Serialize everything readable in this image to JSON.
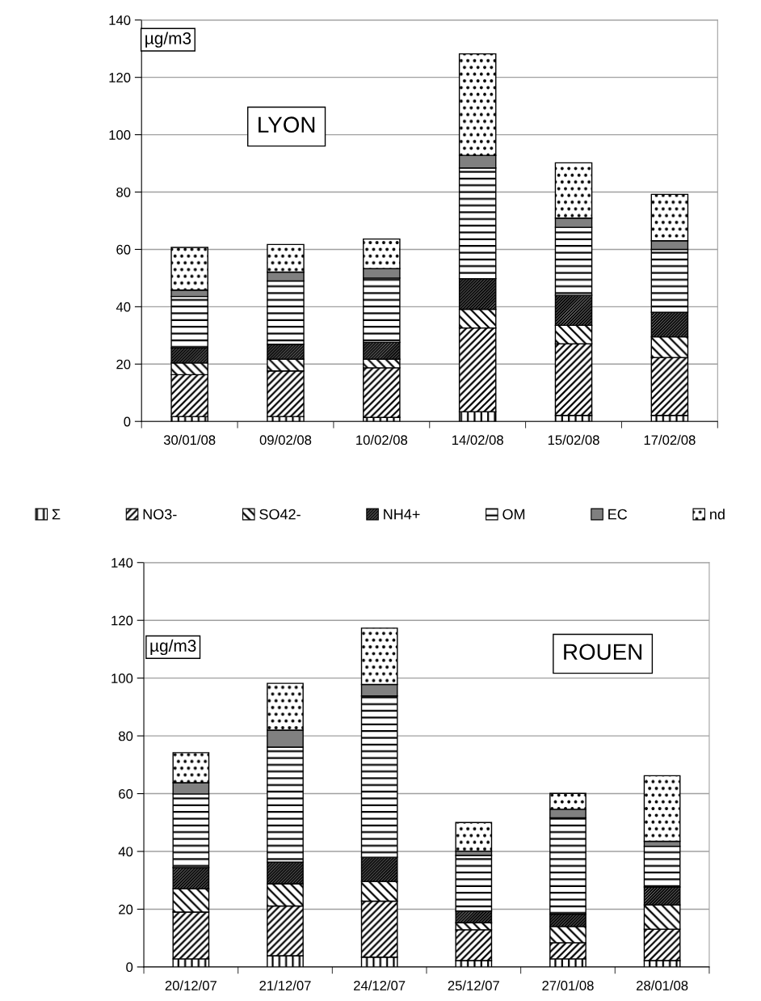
{
  "chart_data": [
    {
      "type": "bar",
      "stacked": true,
      "categories": [
        "30/01/08",
        "09/02/08",
        "10/02/08",
        "14/02/08",
        "15/02/08",
        "17/02/08"
      ],
      "ylim": [
        0,
        140
      ],
      "yticks": [
        0,
        20,
        40,
        60,
        80,
        100,
        120,
        140
      ],
      "grid": "y",
      "legend": "bottom",
      "annotations": [
        "µg/m3",
        "LYON"
      ],
      "series": [
        {
          "name": "Σ",
          "color": "#000000",
          "values": [
            1.7,
            1.7,
            1.4,
            3.4,
            2.1,
            2.1
          ]
        },
        {
          "name": "NO3-",
          "color": "#000000",
          "values": [
            14.6,
            15.9,
            17.3,
            29.2,
            25,
            20.2
          ]
        },
        {
          "name": "SO42-",
          "color": "#000000",
          "values": [
            4.1,
            4.1,
            3,
            6.5,
            6.4,
            7.2
          ]
        },
        {
          "name": "NH4+",
          "color": "#000000",
          "values": [
            5.2,
            5.2,
            5.9,
            10.7,
            10.5,
            8.6
          ]
        },
        {
          "name": "OM",
          "color": "#000000",
          "values": [
            18,
            22.1,
            22.4,
            38.6,
            23.7,
            21.9
          ]
        },
        {
          "name": "EC",
          "color": "#808080",
          "values": [
            2.2,
            3.1,
            3.3,
            4.4,
            3.2,
            3
          ]
        },
        {
          "name": "nd",
          "color": "#000000",
          "values": [
            14.9,
            9.6,
            10.3,
            35.4,
            19.3,
            16.2
          ]
        }
      ]
    },
    {
      "type": "bar",
      "stacked": true,
      "categories": [
        "20/12/07",
        "21/12/07",
        "24/12/07",
        "25/12/07",
        "27/01/08",
        "28/01/08"
      ],
      "ylim": [
        0,
        140
      ],
      "yticks": [
        0,
        20,
        40,
        60,
        80,
        100,
        120,
        140
      ],
      "grid": "y",
      "annotations": [
        "µg/m3",
        "ROUEN"
      ],
      "series": [
        {
          "color": "#000000",
          "values": [
            2.8,
            3.9,
            3.4,
            2.2,
            2.8,
            2.2
          ]
        },
        {
          "color": "#000000",
          "values": [
            16.2,
            17.2,
            19.4,
            10.7,
            5.6,
            10.9
          ]
        },
        {
          "color": "#000000",
          "values": [
            8.1,
            7.7,
            6.8,
            2.4,
            5.6,
            8.4
          ]
        },
        {
          "color": "#000000",
          "values": [
            7.3,
            7.5,
            8.4,
            4.1,
            4.3,
            6.2
          ]
        },
        {
          "color": "#000000",
          "values": [
            25.5,
            39.8,
            55.8,
            19.2,
            33.3,
            14.1
          ]
        },
        {
          "color": "#808080",
          "values": [
            3.9,
            5.9,
            4,
            1.5,
            3,
            1.7
          ]
        },
        {
          "color": "#000000",
          "values": [
            10.4,
            16.2,
            19.5,
            9.9,
            5.5,
            22.7
          ]
        }
      ]
    }
  ]
}
